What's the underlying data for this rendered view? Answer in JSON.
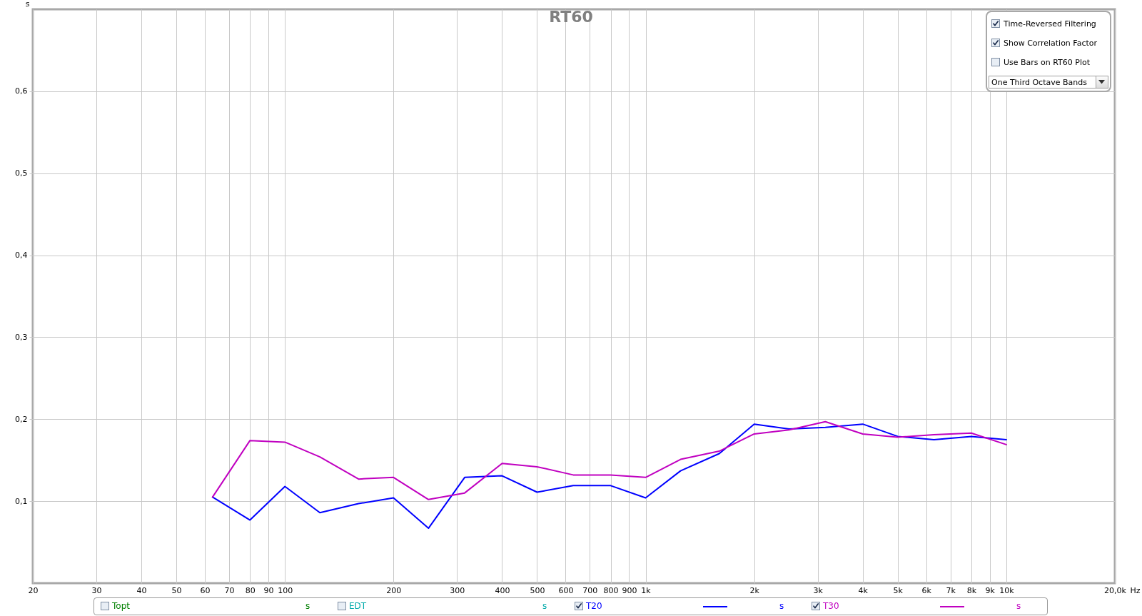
{
  "chart_data": {
    "type": "line",
    "title": "RT60",
    "xlabel": "Hz",
    "ylabel": "s",
    "annotations": [
      "Time-Reversed Filtering",
      "Show Correlation Factor",
      "Use Bars on RT60 Plot",
      "One Third Octave Bands",
      "Topt",
      "EDT"
    ],
    "x": [
      63,
      80,
      100,
      125,
      160,
      200,
      250,
      315,
      400,
      500,
      630,
      800,
      1000,
      1250,
      1600,
      2000,
      2500,
      3150,
      4000,
      5000,
      6300,
      8000,
      10000
    ],
    "series": [
      {
        "name": "T20",
        "color": "#0000ff",
        "values": [
          0.105,
          0.077,
          0.118,
          0.086,
          0.097,
          0.104,
          0.067,
          0.129,
          0.131,
          0.111,
          0.119,
          0.119,
          0.104,
          0.137,
          0.158,
          0.194,
          0.188,
          0.19,
          0.194,
          0.179,
          0.175,
          0.179,
          0.175
        ]
      },
      {
        "name": "T30",
        "color": "#c000c0",
        "values": [
          0.105,
          0.174,
          0.172,
          0.154,
          0.127,
          0.129,
          0.102,
          0.11,
          0.146,
          0.142,
          0.132,
          0.132,
          0.129,
          0.151,
          0.161,
          0.182,
          0.187,
          0.197,
          0.182,
          0.178,
          0.181,
          0.183,
          0.169
        ]
      }
    ],
    "xlim": [
      20,
      20000
    ],
    "ylim": [
      0,
      0.7
    ],
    "xticks": [
      20,
      30,
      40,
      50,
      60,
      70,
      80,
      90,
      100,
      200,
      300,
      400,
      500,
      600,
      700,
      800,
      900,
      {
        "value": 1000,
        "label": "1k"
      },
      {
        "value": 2000,
        "label": "2k"
      },
      {
        "value": 3000,
        "label": "3k"
      },
      {
        "value": 4000,
        "label": "4k"
      },
      {
        "value": 5000,
        "label": "5k"
      },
      {
        "value": 6000,
        "label": "6k"
      },
      {
        "value": 7000,
        "label": "7k"
      },
      {
        "value": 8000,
        "label": "8k"
      },
      {
        "value": 9000,
        "label": "9k"
      },
      {
        "value": 10000,
        "label": "10k"
      },
      {
        "value": 20000,
        "label": "20,0k"
      }
    ],
    "yticks": [
      {
        "value": 0.1,
        "label": "0,1"
      },
      {
        "value": 0.2,
        "label": "0,2"
      },
      {
        "value": 0.3,
        "label": "0,3"
      },
      {
        "value": 0.4,
        "label": "0,4"
      },
      {
        "value": 0.5,
        "label": "0,5"
      },
      {
        "value": 0.6,
        "label": "0,6"
      }
    ],
    "log": "x",
    "grid": true,
    "legend": "bottom"
  }
}
